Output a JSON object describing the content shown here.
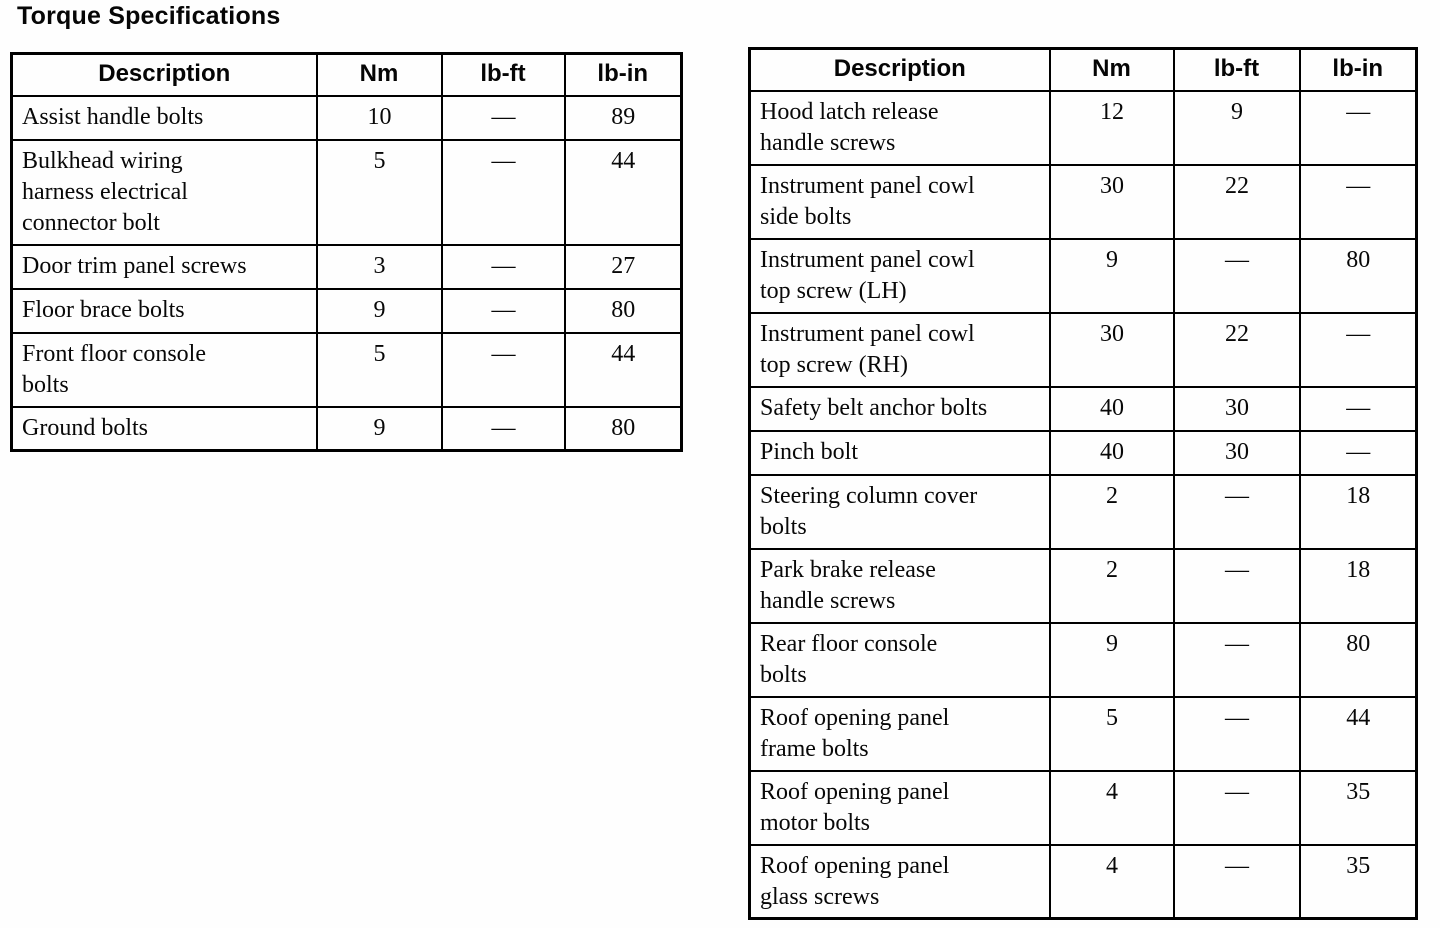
{
  "page": {
    "title": "Torque Specifications"
  },
  "tables": [
    {
      "name": "torque-table-left",
      "headers": [
        "Description",
        "Nm",
        "lb-ft",
        "lb-in"
      ],
      "rows": [
        {
          "description": "Assist handle bolts",
          "nm": "10",
          "lb_ft": "—",
          "lb_in": "89"
        },
        {
          "description": "Bulkhead wiring\nharness electrical\nconnector bolt",
          "nm": "5",
          "lb_ft": "—",
          "lb_in": "44"
        },
        {
          "description": "Door trim panel screws",
          "nm": "3",
          "lb_ft": "—",
          "lb_in": "27"
        },
        {
          "description": "Floor brace bolts",
          "nm": "9",
          "lb_ft": "—",
          "lb_in": "80"
        },
        {
          "description": "Front floor console\nbolts",
          "nm": "5",
          "lb_ft": "—",
          "lb_in": "44"
        },
        {
          "description": "Ground bolts",
          "nm": "9",
          "lb_ft": "—",
          "lb_in": "80"
        }
      ]
    },
    {
      "name": "torque-table-right",
      "headers": [
        "Description",
        "Nm",
        "lb-ft",
        "lb-in"
      ],
      "rows": [
        {
          "description": "Hood latch release\nhandle screws",
          "nm": "12",
          "lb_ft": "9",
          "lb_in": "—"
        },
        {
          "description": "Instrument panel cowl\nside bolts",
          "nm": "30",
          "lb_ft": "22",
          "lb_in": "—"
        },
        {
          "description": "Instrument panel cowl\ntop screw (LH)",
          "nm": "9",
          "lb_ft": "—",
          "lb_in": "80"
        },
        {
          "description": "Instrument panel cowl\ntop screw (RH)",
          "nm": "30",
          "lb_ft": "22",
          "lb_in": "—"
        },
        {
          "description": "Safety belt anchor bolts",
          "nm": "40",
          "lb_ft": "30",
          "lb_in": "—"
        },
        {
          "description": "Pinch bolt",
          "nm": "40",
          "lb_ft": "30",
          "lb_in": "—"
        },
        {
          "description": "Steering column cover\nbolts",
          "nm": "2",
          "lb_ft": "—",
          "lb_in": "18"
        },
        {
          "description": "Park brake release\nhandle screws",
          "nm": "2",
          "lb_ft": "—",
          "lb_in": "18"
        },
        {
          "description": "Rear floor console\nbolts",
          "nm": "9",
          "lb_ft": "—",
          "lb_in": "80"
        },
        {
          "description": "Roof opening panel\nframe bolts",
          "nm": "5",
          "lb_ft": "—",
          "lb_in": "44"
        },
        {
          "description": "Roof opening panel\nmotor bolts",
          "nm": "4",
          "lb_ft": "—",
          "lb_in": "35"
        },
        {
          "description": "Roof opening panel\nglass screws",
          "nm": "4",
          "lb_ft": "—",
          "lb_in": "35"
        }
      ]
    }
  ]
}
